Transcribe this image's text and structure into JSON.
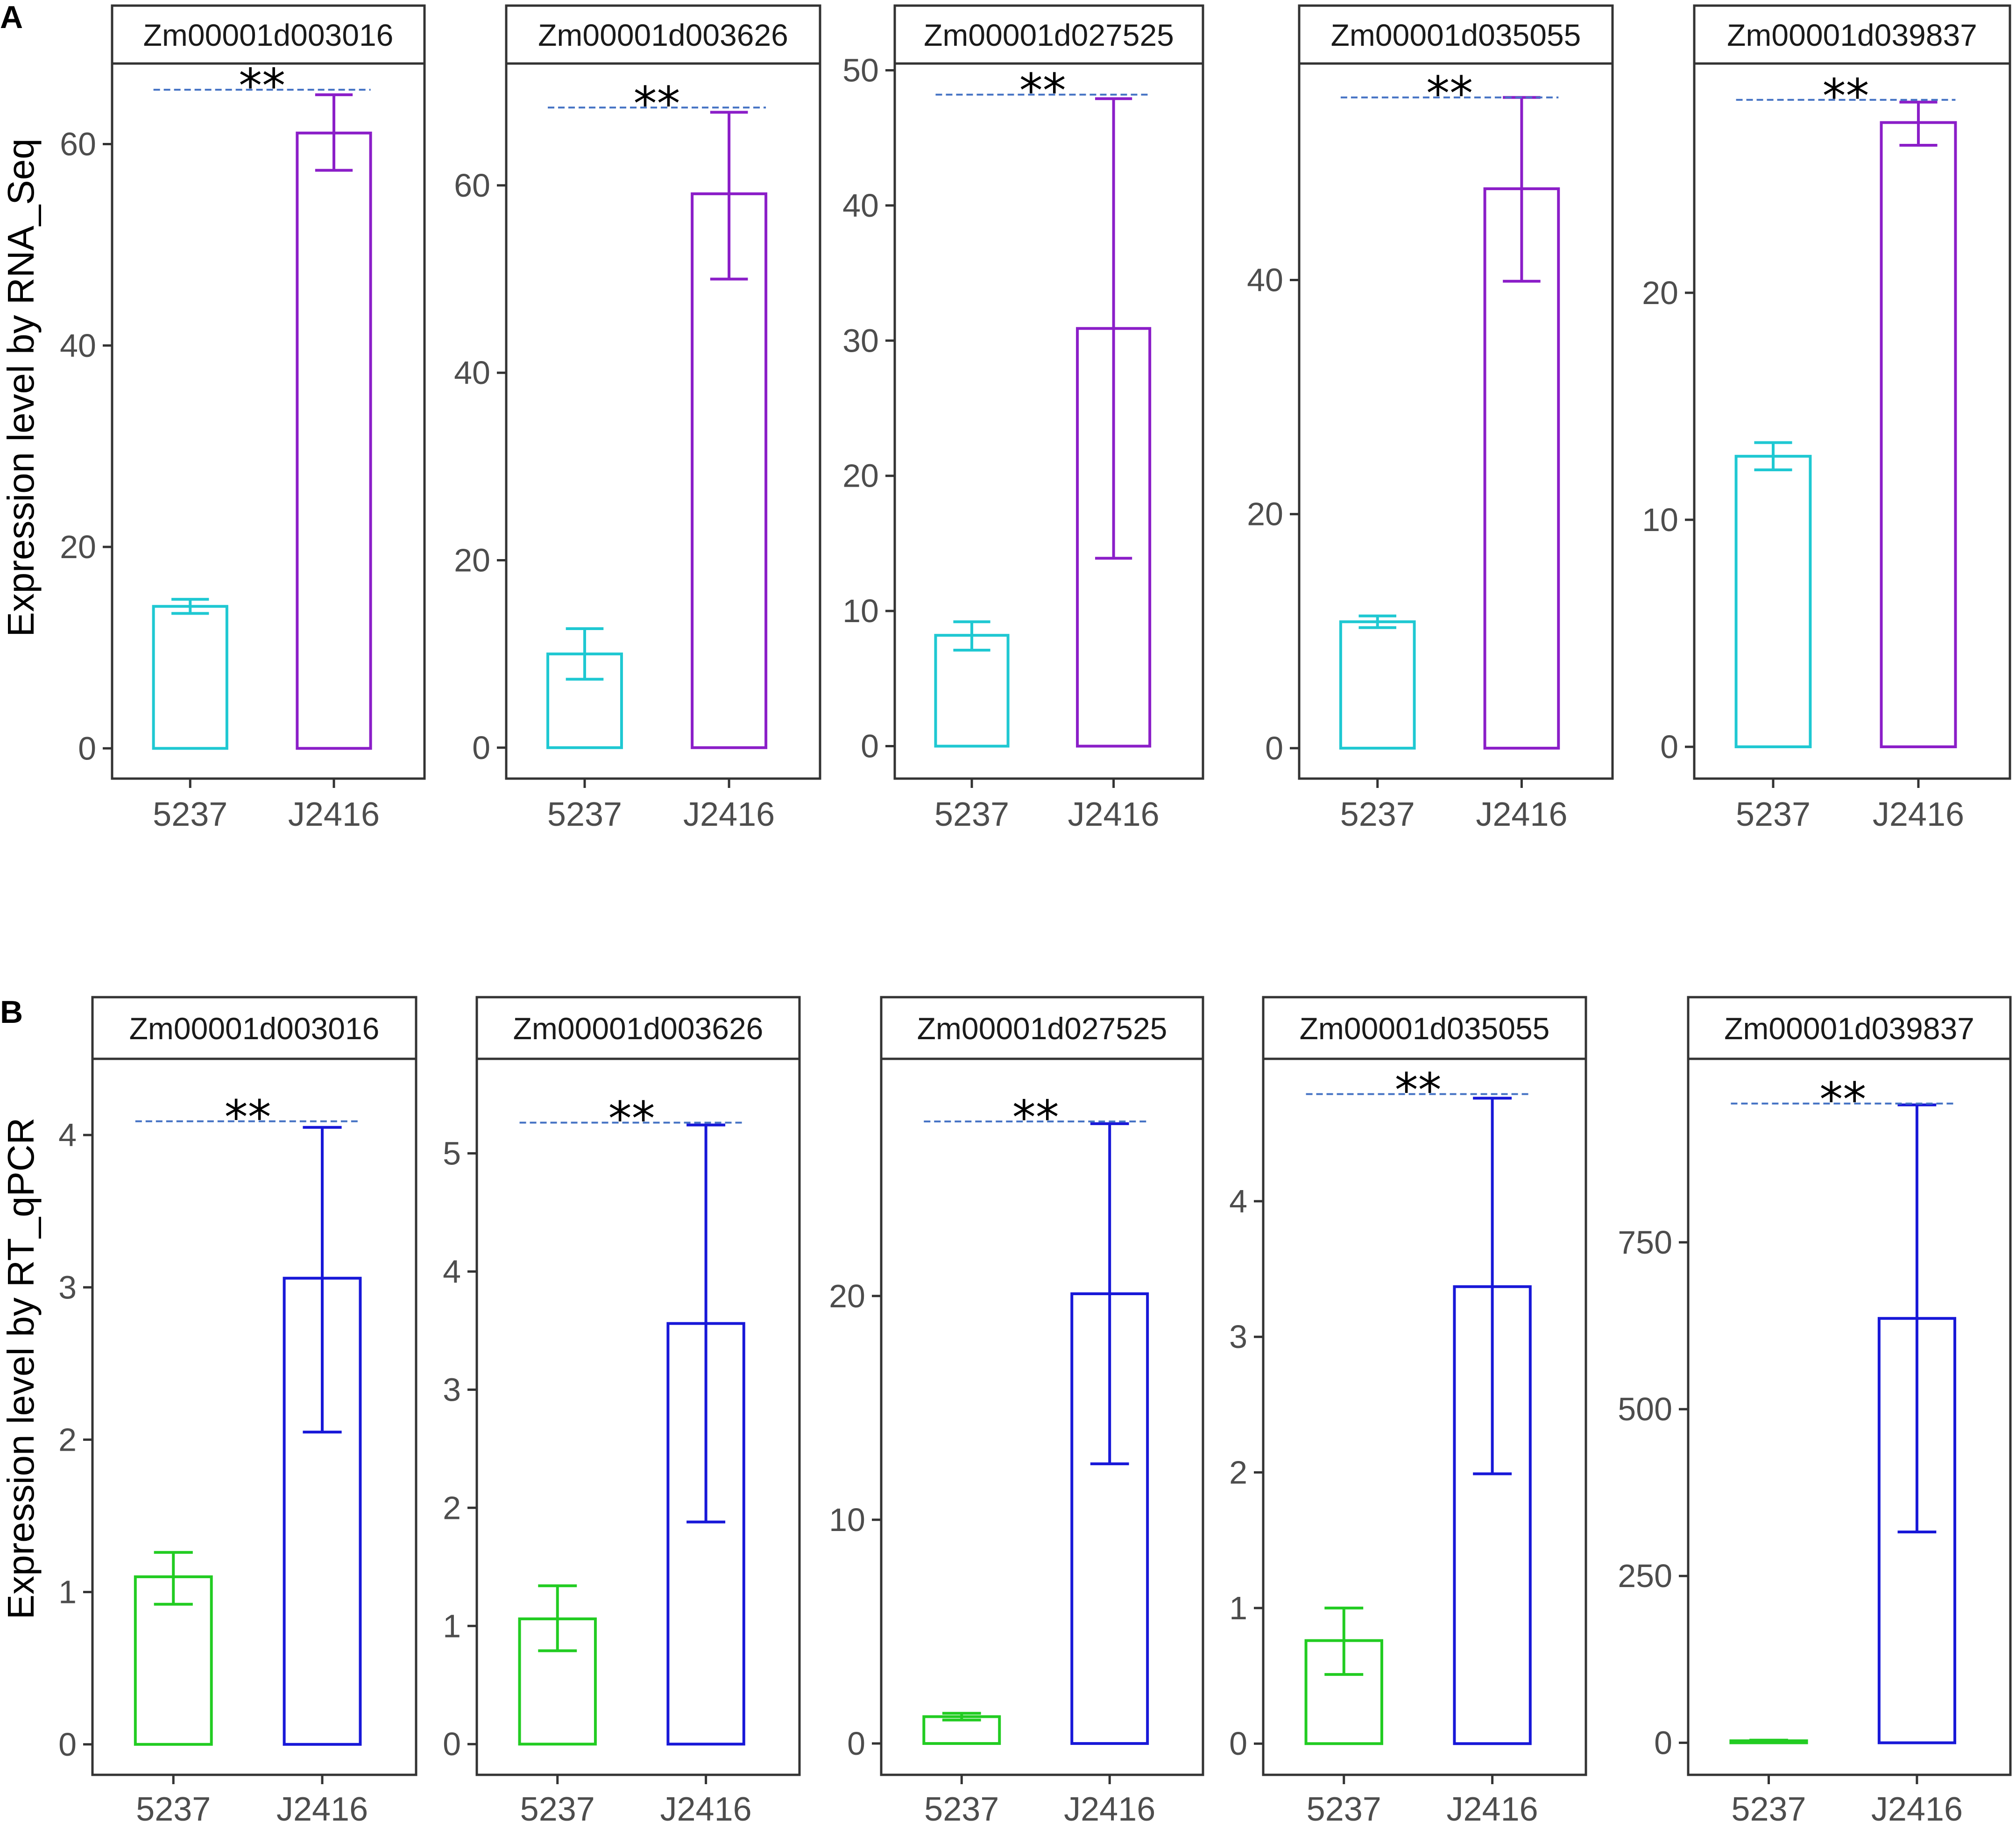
{
  "panels": [
    {
      "letter": "A",
      "ylabel": "Expression level by RNA_Seq"
    },
    {
      "letter": "B",
      "ylabel": "Expression level by RT_qPCR"
    }
  ],
  "chart_data": [
    {
      "type": "bar",
      "row": 0,
      "title": "Zm00001d003016",
      "categories": [
        "5237",
        "J2416"
      ],
      "values": [
        14.1,
        61.1
      ],
      "error_low": [
        13.4,
        57.4
      ],
      "error_high": [
        14.8,
        64.9
      ],
      "colors": [
        "#1fc8d2",
        "#8b1ec8"
      ],
      "ylim": [
        -3,
        68
      ],
      "ticks": [
        0,
        20,
        40,
        60
      ],
      "significance": "**",
      "sig_line_y": 65.4
    },
    {
      "type": "bar",
      "row": 0,
      "title": "Zm00001d003626",
      "categories": [
        "5237",
        "J2416"
      ],
      "values": [
        10.0,
        59.1
      ],
      "error_low": [
        7.3,
        50.0
      ],
      "error_high": [
        12.7,
        67.8
      ],
      "colors": [
        "#1fc8d2",
        "#8b1ec8"
      ],
      "ylim": [
        -3.3,
        73
      ],
      "ticks": [
        0,
        20,
        40,
        60
      ],
      "significance": "**",
      "sig_line_y": 68.3
    },
    {
      "type": "bar",
      "row": 0,
      "title": "Zm00001d027525",
      "categories": [
        "5237",
        "J2416"
      ],
      "values": [
        8.2,
        30.9
      ],
      "error_low": [
        7.1,
        13.9
      ],
      "error_high": [
        9.2,
        47.9
      ],
      "colors": [
        "#1fc8d2",
        "#8b1ec8"
      ],
      "ylim": [
        -2.4,
        50.5
      ],
      "ticks": [
        0,
        10,
        20,
        30,
        40,
        50
      ],
      "significance": "**",
      "sig_line_y": 48.2
    },
    {
      "type": "bar",
      "row": 0,
      "title": "Zm00001d035055",
      "categories": [
        "5237",
        "J2416"
      ],
      "values": [
        10.8,
        47.8
      ],
      "error_low": [
        10.3,
        39.9
      ],
      "error_high": [
        11.3,
        55.6
      ],
      "colors": [
        "#1fc8d2",
        "#8b1ec8"
      ],
      "ylim": [
        -2.6,
        58.5
      ],
      "ticks": [
        0,
        20,
        40
      ],
      "significance": "**",
      "sig_line_y": 55.6
    },
    {
      "type": "bar",
      "row": 0,
      "title": "Zm00001d039837",
      "categories": [
        "5237",
        "J2416"
      ],
      "values": [
        12.8,
        27.5
      ],
      "error_low": [
        12.2,
        26.5
      ],
      "error_high": [
        13.4,
        28.4
      ],
      "colors": [
        "#1fc8d2",
        "#8b1ec8"
      ],
      "ylim": [
        -1.4,
        30.1
      ],
      "ticks": [
        0,
        10,
        20
      ],
      "significance": "**",
      "sig_line_y": 28.5
    },
    {
      "type": "bar",
      "row": 1,
      "title": "Zm00001d003016",
      "categories": [
        "5237",
        "J2416"
      ],
      "values": [
        1.1,
        3.06
      ],
      "error_low": [
        0.92,
        2.05
      ],
      "error_high": [
        1.26,
        4.05
      ],
      "colors": [
        "#22cc22",
        "#1818d8"
      ],
      "ylim": [
        -0.2,
        4.5
      ],
      "ticks": [
        0,
        1,
        2,
        3,
        4
      ],
      "significance": "**",
      "sig_line_y": 4.09
    },
    {
      "type": "bar",
      "row": 1,
      "title": "Zm00001d003626",
      "categories": [
        "5237",
        "J2416"
      ],
      "values": [
        1.06,
        3.56
      ],
      "error_low": [
        0.79,
        1.88
      ],
      "error_high": [
        1.34,
        5.24
      ],
      "colors": [
        "#22cc22",
        "#1818d8"
      ],
      "ylim": [
        -0.26,
        5.8
      ],
      "ticks": [
        0,
        1,
        2,
        3,
        4,
        5
      ],
      "significance": "**",
      "sig_line_y": 5.26
    },
    {
      "type": "bar",
      "row": 1,
      "title": "Zm00001d027525",
      "categories": [
        "5237",
        "J2416"
      ],
      "values": [
        1.2,
        20.1
      ],
      "error_low": [
        1.05,
        12.5
      ],
      "error_high": [
        1.35,
        27.7
      ],
      "colors": [
        "#22cc22",
        "#1818d8"
      ],
      "ylim": [
        -1.4,
        30.6
      ],
      "ticks": [
        0,
        10,
        20
      ],
      "significance": "**",
      "sig_line_y": 27.8
    },
    {
      "type": "bar",
      "row": 1,
      "title": "Zm00001d035055",
      "categories": [
        "5237",
        "J2416"
      ],
      "values": [
        0.76,
        3.37
      ],
      "error_low": [
        0.51,
        1.99
      ],
      "error_high": [
        1.0,
        4.76
      ],
      "colors": [
        "#22cc22",
        "#1818d8"
      ],
      "ylim": [
        -0.23,
        5.05
      ],
      "ticks": [
        0,
        1,
        2,
        3,
        4
      ],
      "significance": "**",
      "sig_line_y": 4.79
    },
    {
      "type": "bar",
      "row": 1,
      "title": "Zm00001d039837",
      "categories": [
        "5237",
        "J2416"
      ],
      "values": [
        3,
        636
      ],
      "error_low": [
        2,
        316
      ],
      "error_high": [
        4,
        956
      ],
      "colors": [
        "#22cc22",
        "#1818d8"
      ],
      "ylim": [
        -48,
        1025
      ],
      "ticks": [
        0,
        250,
        500,
        750
      ],
      "significance": "**",
      "sig_line_y": 958
    }
  ]
}
